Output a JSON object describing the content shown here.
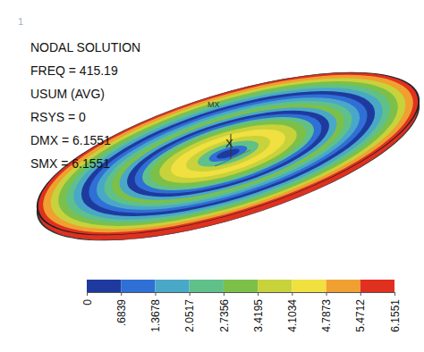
{
  "chart_data": {
    "type": "contour",
    "figure_number": "1",
    "title": "NODAL SOLUTION",
    "annotations": [
      "FREQ = 415.19",
      "USUM (AVG)",
      "RSYS = 0",
      "DMX = 6.1551",
      "SMX = 6.1551"
    ],
    "triad_labels": [
      "MX",
      "X"
    ],
    "rings": {
      "radii": [
        1.0,
        0.97,
        0.93,
        0.89,
        0.85,
        0.81,
        0.77,
        0.73,
        0.69,
        0.65,
        0.61,
        0.57,
        0.53,
        0.49,
        0.45,
        0.41,
        0.36,
        0.3,
        0.22,
        0.16,
        0.1,
        0.06
      ],
      "values": [
        5.8,
        5.0,
        3.6,
        2.9,
        2.2,
        1.5,
        0.3,
        1.0,
        1.6,
        2.4,
        3.0,
        1.8,
        0.3,
        1.0,
        2.2,
        3.0,
        3.7,
        4.4,
        4.0,
        2.6,
        1.2,
        0.2
      ]
    },
    "colorbar": {
      "range": [
        0,
        6.1551
      ],
      "ticks": [
        0,
        {
          "value": 0.6839,
          "label": ".6839"
        },
        1.3678,
        2.0517,
        2.7356,
        3.4195,
        4.1034,
        4.7873,
        5.4712,
        6.1551
      ],
      "colors": [
        "#1f3a9e",
        "#2f6fd6",
        "#49a8c8",
        "#5fc08a",
        "#7cc04a",
        "#c8d23a",
        "#f0e040",
        "#f0a030",
        "#e03020"
      ]
    }
  }
}
